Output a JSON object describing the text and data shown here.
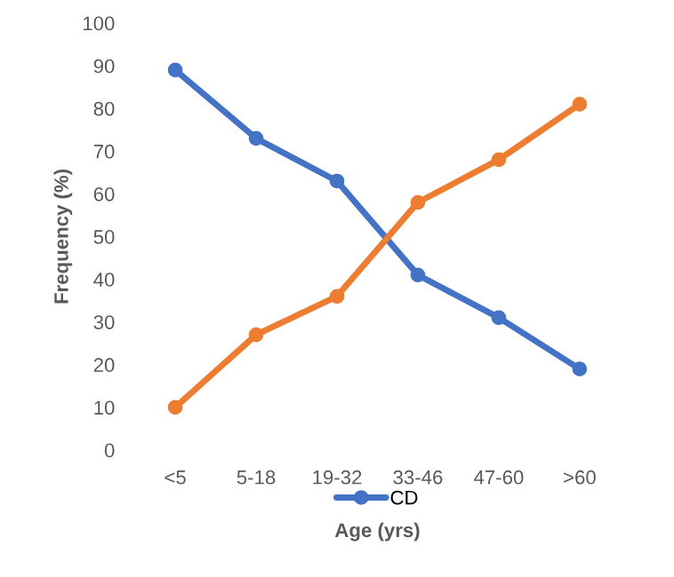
{
  "chart_data": {
    "type": "line",
    "ylabel": "Frequency (%)",
    "xlabel": "Age (yrs)",
    "categories": [
      "<5",
      "5-18",
      "19-32",
      "33-46",
      "47-60",
      ">60"
    ],
    "series": [
      {
        "name": "CD",
        "color": "#4472c4",
        "values": [
          89,
          73,
          63,
          41,
          31,
          19
        ]
      },
      {
        "color": "#ed7d31",
        "values": [
          10,
          27,
          36,
          58,
          68,
          81
        ]
      }
    ],
    "ylim": [
      0,
      100
    ],
    "yticks": [
      0,
      10,
      20,
      30,
      40,
      50,
      60,
      70,
      80,
      90,
      100
    ],
    "grid": false,
    "legend": "bottom",
    "marker": "circle",
    "line_style": "solid"
  }
}
